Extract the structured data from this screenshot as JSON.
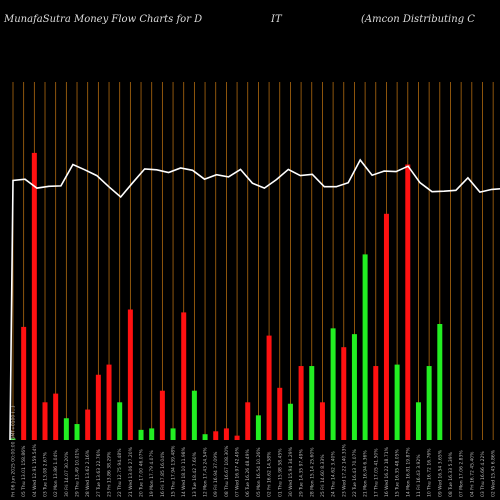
{
  "header": {
    "left": "MunafaSutra  Money Flow  Charts for D",
    "middle": "IT",
    "right": "(Amcon  Distributing C"
  },
  "colors": {
    "background": "#000000",
    "grid": "#b06a10",
    "up": "#22ee22",
    "down": "#ff1111",
    "line": "#ffffff"
  },
  "chart_data": {
    "type": "bar",
    "ylim": [
      0,
      100
    ],
    "categories": [
      "Fri 06 Jun 2025 00:00:00 GMT+0100 (...)",
      "05 Thu 13.01 158.86%",
      "04 Wed 12.91 159.54%",
      "03 Tue 13.08 2.67%",
      "02 Mon 13.86 1.04%",
      "30 Fri 14.07 30.20%",
      "29 Thu 13.49 10.01%",
      "28 Wed 13.62 2.16%",
      "27 Tue 13.63 22.76%",
      "23 Fri 13.86 38.29%",
      "22 Thu 12.75 94.48%",
      "21 Wed 13.06 27.20%",
      "20 Tue 17.00 46.07%",
      "19 Mon 17.79 4.07%",
      "16 Fri 17.85 16.04%",
      "15 Thu 17.94 139.48%",
      "14 Wed 18.10 11.98%",
      "13 Tue 18.42 7.60%",
      "12 Mon 17.43 24.54%",
      "09 Fri 16.94 37.09%",
      "08 Thu 16.67 108.30%",
      "07 Wed 16.97 42.49%",
      "06 Tue 16.26 48.49%",
      "05 Mon 16.54 10.26%",
      "02 Fri 16.62 14.58%",
      "01 Thu 15.98 58.45%",
      "30 Wed 15.94 34.29%",
      "29 Tue 14.35 97.49%",
      "28 Mon 15.14 25.60%",
      "25 Fri 14.60 8.33%",
      "24 Thu 14.62 3.40%",
      "23 Wed 17.22 140.33%",
      "22 Tue 16.43 70.07%",
      "21 Mon 16.94 6.36%",
      "17 Thu 17.05 41.50%",
      "16 Wed 16.22 18.71%",
      "15 Tue 16.35 48.05%",
      "14 Mon 16.81 19.87%",
      "11 Fri 16.43 3.92%",
      "10 Thu 16.72 16.76%",
      "09 Wed 16.54 3.65%",
      "08 Tue 16.33 5.39%",
      "07 Mon 17.06 2.83%",
      "04 Fri 16.72 45.40%",
      "03 Thu 16.66 4.22%",
      "02 Wed 15.45 6.86%",
      "01 Tue 16.19 5.61%"
    ],
    "bar_colors": [
      "green",
      "red",
      "red",
      "red",
      "red",
      "green",
      "green",
      "red",
      "red",
      "red",
      "green",
      "red",
      "green",
      "green",
      "red",
      "green",
      "red",
      "green",
      "green",
      "red",
      "red",
      "red",
      "red",
      "green",
      "red",
      "red",
      "green",
      "red",
      "green",
      "red",
      "green",
      "red",
      "green",
      "green",
      "red",
      "red",
      "green",
      "red",
      "green",
      "green",
      "green",
      "red",
      "red",
      "green",
      "red",
      "green",
      "green"
    ],
    "values": [
      0.5,
      39,
      99,
      13,
      16,
      7.5,
      5.5,
      10.5,
      22.5,
      26,
      13,
      45,
      3.5,
      4,
      17,
      4,
      44,
      17,
      2,
      3,
      4,
      1.5,
      13,
      8.5,
      36,
      18,
      12.5,
      25.5,
      25.5,
      13,
      38.5,
      32,
      36.5,
      64,
      25.5,
      78,
      26,
      95,
      13,
      25.5,
      40,
      0,
      0,
      0,
      0,
      0,
      0
    ],
    "line": [
      90,
      90.3,
      88.3,
      88.7,
      88.8,
      93.6,
      92.4,
      91.1,
      88.6,
      86.3,
      89.5,
      92.6,
      92.4,
      91.8,
      92.8,
      92.3,
      90.3,
      91.3,
      90.8,
      92.5,
      89.4,
      88.3,
      90.2,
      92.5,
      91.1,
      91.4,
      88.6,
      88.6,
      89.5,
      94.6,
      91.2,
      92.1,
      92,
      93.2,
      89.5,
      87.5,
      87.6,
      87.8,
      90.6,
      87.4,
      88,
      88.2
    ]
  }
}
